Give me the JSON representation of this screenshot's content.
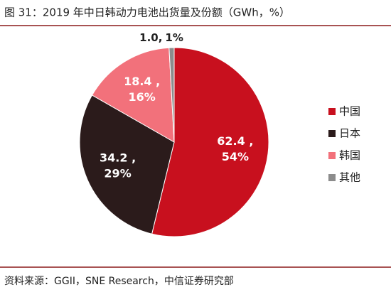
{
  "chart_data": {
    "type": "pie",
    "title": "图 31：2019 年中日韩动力电池出货量及份额（GWh，%）",
    "source": "资料来源：GGII，SNE Research，中信证券研究部",
    "categories": [
      "中国",
      "日本",
      "韩国",
      "其他"
    ],
    "values": [
      62.4,
      34.2,
      18.4,
      1.0
    ],
    "value_labels": [
      "62.4 ,",
      "34.2 ,",
      "18.4 ,",
      "1.0,"
    ],
    "shares": [
      54,
      29,
      16,
      1
    ],
    "share_labels": [
      "54%",
      "29%",
      "16%",
      "1%"
    ],
    "colors": [
      "#c8101e",
      "#2b1b1b",
      "#f2717b",
      "#8c8c8c"
    ],
    "legend": "right"
  }
}
